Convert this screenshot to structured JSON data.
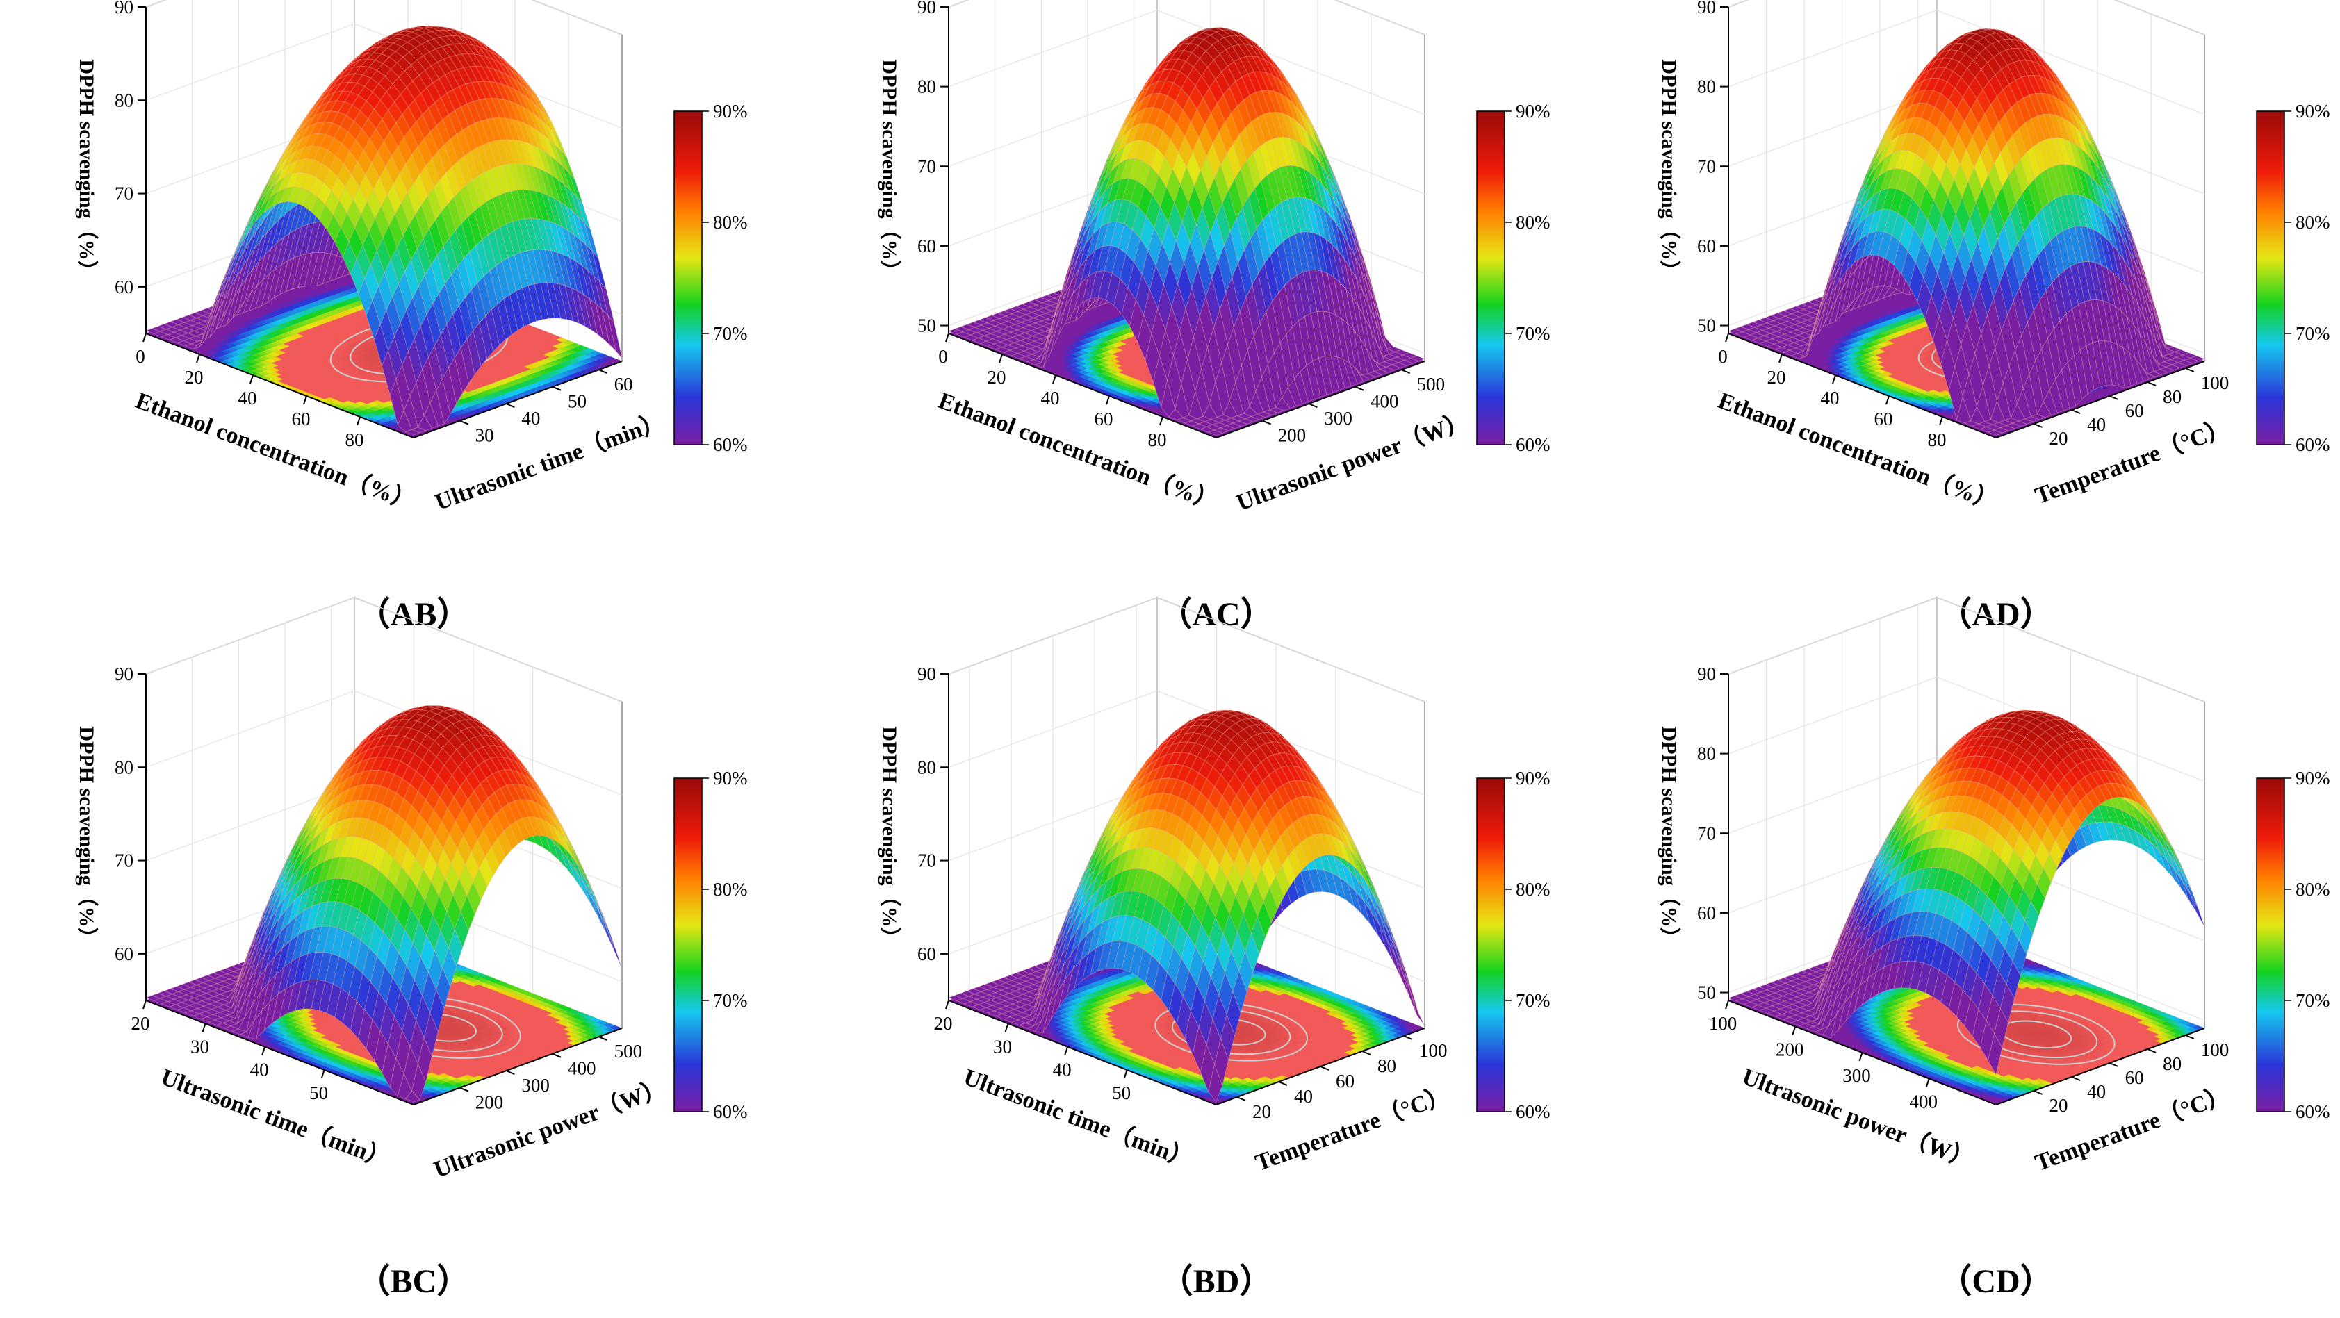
{
  "figure": {
    "colorscale": [
      "#7b1fa2",
      "#2b36d9",
      "#14c8ee",
      "#14d21e",
      "#e6e614",
      "#ff7d00",
      "#ef1c0a",
      "#9a0a0a"
    ],
    "base_color": "#f25a5a",
    "wire_color": "#f5b0a0",
    "contour_color": "#9a9a9a"
  },
  "chart_data": [
    {
      "type": "surface3d",
      "title": "（AB）",
      "xlabel": "Ethanol concentration（%）",
      "ylabel": "Ultrasonic time（min）",
      "zlabel": "DPPH scavenging（%）",
      "xlim": [
        0,
        100
      ],
      "ylim": [
        20,
        65
      ],
      "zlim": [
        55,
        90
      ],
      "xticks": [
        0,
        20,
        40,
        60,
        80
      ],
      "yticks": [
        30,
        40,
        50,
        60
      ],
      "zticks": [
        60,
        70,
        80,
        90
      ],
      "colorbar_ticks": [
        "60%",
        "70%",
        "80%",
        "90%"
      ],
      "model": {
        "z0": 89.0,
        "xopt": 57,
        "yopt": 46,
        "wx": 26.5,
        "wy": 22.2,
        "rx": 48,
        "ry": 22,
        "bx": 0.6,
        "by": 0.36
      }
    },
    {
      "type": "surface3d",
      "title": "（AC）",
      "xlabel": "Ethanol concentration（%）",
      "ylabel": "Ultrasonic power（W）",
      "zlabel": "DPPH scavenging（%）",
      "xlim": [
        0,
        100
      ],
      "ylim": [
        100,
        550
      ],
      "zlim": [
        49,
        90
      ],
      "xticks": [
        0,
        20,
        40,
        60,
        80
      ],
      "yticks": [
        200,
        300,
        400,
        500
      ],
      "zticks": [
        50,
        60,
        70,
        80,
        90
      ],
      "colorbar_ticks": [
        "60%",
        "70%",
        "80%",
        "90%"
      ],
      "model": {
        "z0": 89.5,
        "xopt": 58,
        "yopt": 340,
        "wx": 20.6,
        "wy": 142,
        "rx": 45,
        "ry": 220,
        "bx": 0.7,
        "by": 0.36
      }
    },
    {
      "type": "surface3d",
      "title": "（AD）",
      "xlabel": "Ethanol concentration（%）",
      "ylabel": "Temperature（°C）",
      "zlabel": "DPPH scavenging（%）",
      "xlim": [
        0,
        100
      ],
      "ylim": [
        0,
        110
      ],
      "zlim": [
        49,
        90
      ],
      "xticks": [
        0,
        20,
        40,
        60,
        80
      ],
      "yticks": [
        20,
        40,
        60,
        80,
        100
      ],
      "zticks": [
        50,
        60,
        70,
        80,
        90
      ],
      "colorbar_ticks": [
        "60%",
        "70%",
        "80%",
        "90%"
      ],
      "model": {
        "z0": 89.5,
        "xopt": 57,
        "yopt": 55,
        "wx": 21.8,
        "wy": 36,
        "rx": 45,
        "ry": 48,
        "bx": 0.7,
        "by": 0.36
      }
    },
    {
      "type": "surface3d",
      "title": "（BC）",
      "xlabel": "Ultrasonic time（min）",
      "ylabel": "Ultrasonic power（W）",
      "zlabel": "DPPH scavenging（%）",
      "xlim": [
        20,
        65
      ],
      "ylim": [
        100,
        550
      ],
      "zlim": [
        55,
        90
      ],
      "xticks": [
        20,
        30,
        40,
        50
      ],
      "yticks": [
        200,
        300,
        400,
        500
      ],
      "zticks": [
        60,
        70,
        80,
        90
      ],
      "colorbar_ticks": [
        "60%",
        "70%",
        "80%",
        "90%"
      ],
      "model": {
        "z0": 89.0,
        "xopt": 50,
        "yopt": 350,
        "wx": 15.1,
        "wy": 150,
        "rx": 30,
        "ry": 250,
        "bx": 0.6,
        "by": 0.36
      }
    },
    {
      "type": "surface3d",
      "title": "（BD）",
      "xlabel": "Ultrasonic time（min）",
      "ylabel": "Temperature（°C）",
      "zlabel": "DPPH scavenging（%）",
      "xlim": [
        20,
        65
      ],
      "ylim": [
        10,
        110
      ],
      "zlim": [
        55,
        90
      ],
      "xticks": [
        20,
        30,
        40,
        50
      ],
      "yticks": [
        20,
        40,
        60,
        80,
        100
      ],
      "zticks": [
        60,
        70,
        80,
        90
      ],
      "colorbar_ticks": [
        "60%",
        "70%",
        "80%",
        "90%"
      ],
      "model": {
        "z0": 89.0,
        "xopt": 50,
        "yopt": 60,
        "wx": 14.0,
        "wy": 32.7,
        "rx": 30,
        "ry": 50,
        "bx": 0.6,
        "by": 0.36
      }
    },
    {
      "type": "surface3d",
      "title": "（CD）",
      "xlabel": "Ultrasonic power（W）",
      "ylabel": "Temperature（°C）",
      "zlabel": "DPPH scavenging（%）",
      "xlim": [
        100,
        500
      ],
      "ylim": [
        0,
        110
      ],
      "zlim": [
        49,
        90
      ],
      "xticks": [
        100,
        200,
        300,
        400
      ],
      "yticks": [
        20,
        40,
        60,
        80,
        100
      ],
      "zticks": [
        50,
        60,
        70,
        80,
        90
      ],
      "colorbar_ticks": [
        "60%",
        "70%",
        "80%",
        "90%"
      ],
      "model": {
        "z0": 89.0,
        "xopt": 390,
        "yopt": 60,
        "wx": 133,
        "wy": 35,
        "rx": 300,
        "ry": 50,
        "bx": 0.6,
        "by": 0.36
      }
    }
  ]
}
